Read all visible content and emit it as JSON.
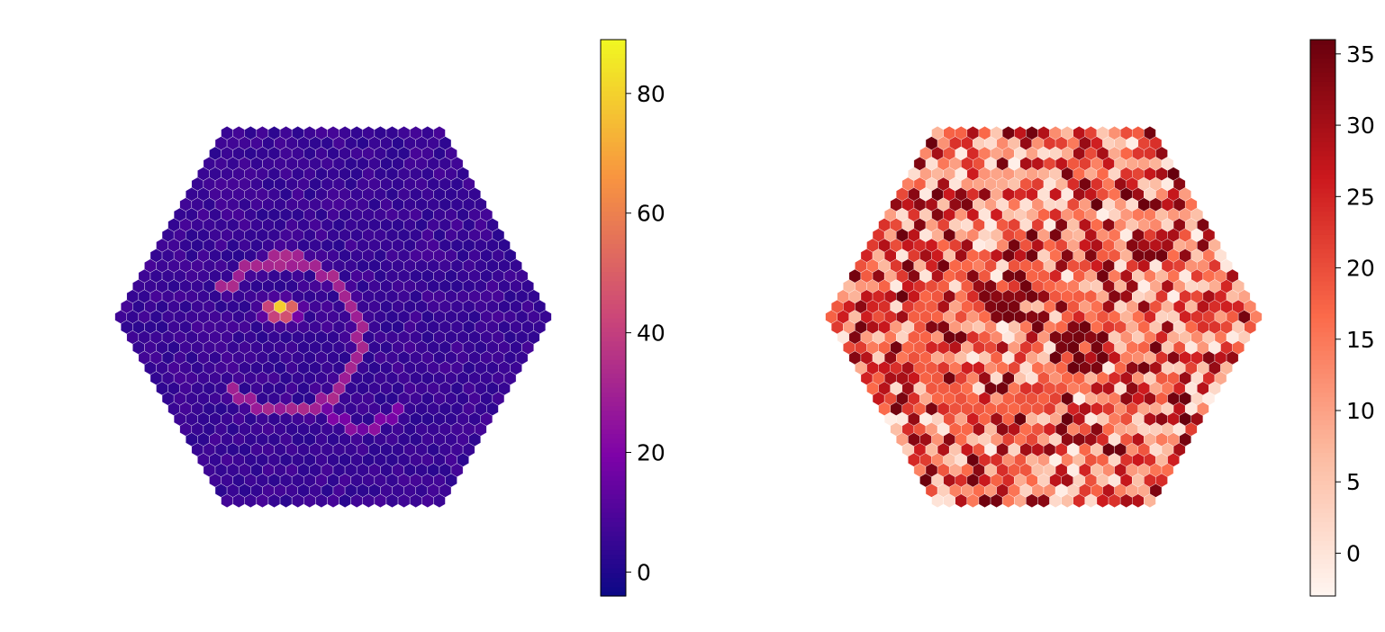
{
  "chart_data": [
    {
      "type": "heatmap",
      "layout": "hexagonal-camera",
      "title": "",
      "colormap": "plasma",
      "colors": [
        "#0d0887",
        "#7e03a8",
        "#cc4778",
        "#f89540",
        "#f0f921"
      ],
      "clim": [
        -4,
        89
      ],
      "colorbar_ticks": [
        0,
        20,
        40,
        60,
        80
      ],
      "colorbar_tick_labels": [
        "0",
        "20",
        "40",
        "60",
        "80"
      ],
      "background_level": 5,
      "features": [
        {
          "kind": "ring-arc",
          "center": [
            -4.2,
            1.6
          ],
          "radius": 6.4,
          "value": 27
        },
        {
          "kind": "curved-track",
          "value": 22
        },
        {
          "kind": "hotspot",
          "center": [
            -4.4,
            -0.6
          ],
          "peak": 89
        }
      ]
    },
    {
      "type": "heatmap",
      "layout": "hexagonal-camera",
      "title": "",
      "colormap": "reds",
      "colors": [
        "#fff5f0",
        "#fcbba1",
        "#fb6a4a",
        "#cb181d",
        "#67000d"
      ],
      "clim": [
        -3,
        36
      ],
      "colorbar_ticks": [
        0,
        5,
        10,
        15,
        20,
        25,
        30,
        35
      ],
      "colorbar_tick_labels": [
        "0",
        "5",
        "10",
        "15",
        "20",
        "25",
        "30",
        "35"
      ],
      "noise_range": [
        -2,
        36
      ],
      "features": [
        {
          "kind": "ring-band",
          "value": 18
        },
        {
          "kind": "dark-cluster",
          "center": [
            -3.0,
            -1.6
          ],
          "value": 32
        },
        {
          "kind": "dark-cluster",
          "center": [
            3.0,
            2.8
          ],
          "value": 33
        }
      ]
    }
  ]
}
